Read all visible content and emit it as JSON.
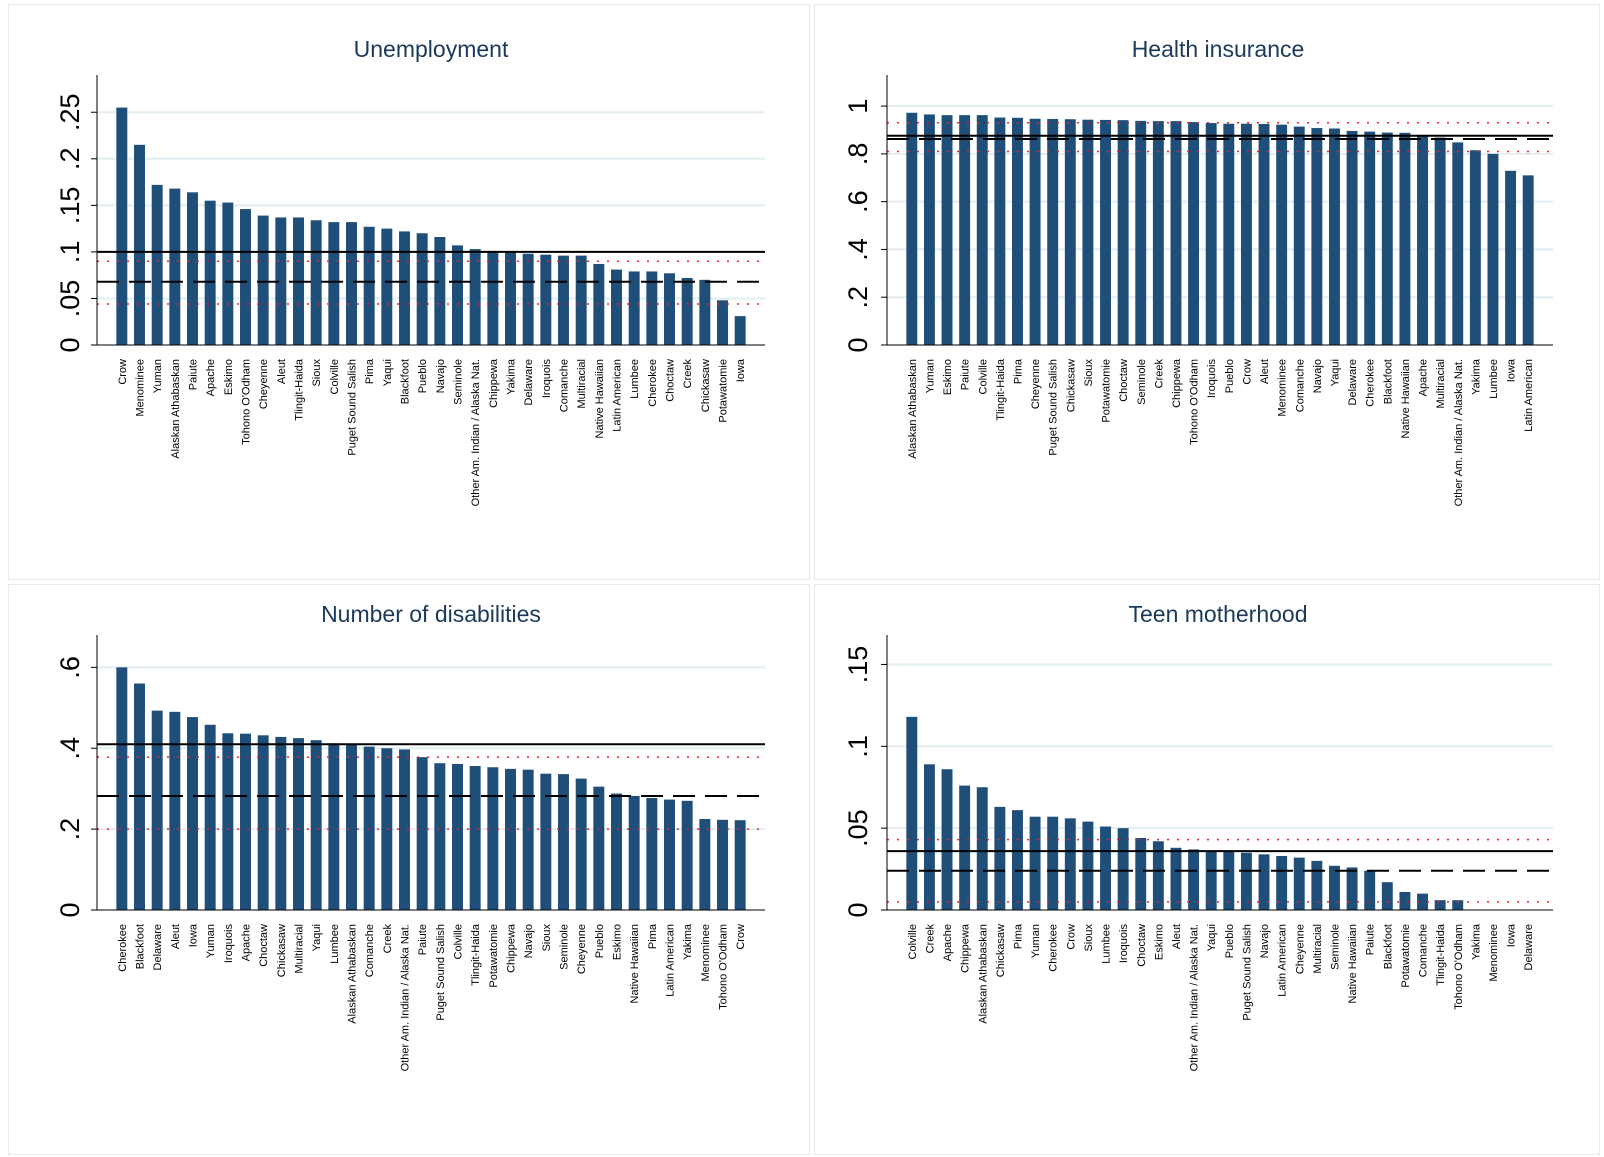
{
  "colors": {
    "bar": "#1f4e79",
    "grid": "#e2eef2",
    "reference_solid": "#000000",
    "reference_dashed": "#000000",
    "ci_dotted": "#e8262a",
    "title": "#1b3a5b"
  },
  "chart_data": [
    {
      "type": "bar",
      "title": "Unemployment",
      "xlabel": "",
      "ylabel": "",
      "ylim": [
        0,
        0.29
      ],
      "yticks": [
        0,
        0.05,
        0.1,
        0.15,
        0.2,
        0.25
      ],
      "ytick_labels": [
        "0",
        ".05",
        ".1",
        ".15",
        ".2",
        ".25"
      ],
      "grid": true,
      "categories": [
        "Crow",
        "Menominee",
        "Yuman",
        "Alaskan Athabaskan",
        "Paiute",
        "Apache",
        "Eskimo",
        "Tohono O'Odham",
        "Cheyenne",
        "Aleut",
        "Tlingit-Haida",
        "Sioux",
        "Colville",
        "Puget Sound Salish",
        "Pima",
        "Yaqui",
        "Blackfoot",
        "Pueblo",
        "Navajo",
        "Seminole",
        "Other Am. Indian / Alaska Nat.",
        "Chippewa",
        "Yakima",
        "Delaware",
        "Iroquois",
        "Comanche",
        "Multiracial",
        "Native Hawaiian",
        "Latin American",
        "Lumbee",
        "Cherokee",
        "Choctaw",
        "Creek",
        "Chickasaw",
        "Potawatomie",
        "Iowa"
      ],
      "values": [
        0.255,
        0.215,
        0.172,
        0.168,
        0.164,
        0.155,
        0.153,
        0.146,
        0.139,
        0.137,
        0.137,
        0.134,
        0.132,
        0.132,
        0.127,
        0.125,
        0.122,
        0.12,
        0.116,
        0.107,
        0.103,
        0.101,
        0.1,
        0.098,
        0.097,
        0.096,
        0.096,
        0.087,
        0.081,
        0.079,
        0.079,
        0.077,
        0.072,
        0.07,
        0.048,
        0.031
      ],
      "ref_solid": 0.1,
      "ref_dashed": 0.068,
      "ci_dotted": [
        0.044,
        0.09
      ]
    },
    {
      "type": "bar",
      "title": "Health insurance",
      "xlabel": "",
      "ylabel": "",
      "ylim": [
        0,
        1.13
      ],
      "yticks": [
        0,
        0.2,
        0.4,
        0.6,
        0.8,
        1
      ],
      "ytick_labels": [
        "0",
        ".2",
        ".4",
        ".6",
        ".8",
        "1"
      ],
      "grid": true,
      "categories": [
        "Alaskan Athabaskan",
        "Yuman",
        "Eskimo",
        "Paiute",
        "Colville",
        "Tlingit-Haida",
        "Pima",
        "Cheyenne",
        "Puget Sound Salish",
        "Chickasaw",
        "Sioux",
        "Potawatomie",
        "Choctaw",
        "Seminole",
        "Creek",
        "Chippewa",
        "Tohono O'Odham",
        "Iroquois",
        "Pueblo",
        "Crow",
        "Aleut",
        "Menominee",
        "Comanche",
        "Navajo",
        "Yaqui",
        "Delaware",
        "Cherokee",
        "Blackfoot",
        "Native Hawaiian",
        "Apache",
        "Multiracial",
        "Other Am. Indian / Alaska Nat.",
        "Yakima",
        "Lumbee",
        "Iowa",
        "Latin American"
      ],
      "values": [
        0.972,
        0.965,
        0.962,
        0.962,
        0.962,
        0.952,
        0.951,
        0.947,
        0.946,
        0.945,
        0.943,
        0.942,
        0.941,
        0.938,
        0.937,
        0.937,
        0.933,
        0.929,
        0.926,
        0.926,
        0.925,
        0.922,
        0.914,
        0.908,
        0.906,
        0.896,
        0.893,
        0.889,
        0.888,
        0.874,
        0.868,
        0.848,
        0.815,
        0.8,
        0.729,
        0.71
      ],
      "ref_solid": 0.876,
      "ref_dashed": 0.862,
      "ci_dotted": [
        0.81,
        0.93
      ]
    },
    {
      "type": "bar",
      "title": "Number of disabilities",
      "xlabel": "",
      "ylabel": "",
      "ylim": [
        0,
        0.68
      ],
      "yticks": [
        0,
        0.2,
        0.4,
        0.6
      ],
      "ytick_labels": [
        "0",
        ".2",
        ".4",
        ".6"
      ],
      "grid": true,
      "categories": [
        "Cherokee",
        "Blackfoot",
        "Delaware",
        "Aleut",
        "Iowa",
        "Yuman",
        "Iroquois",
        "Apache",
        "Choctaw",
        "Chickasaw",
        "Multiracial",
        "Yaqui",
        "Lumbee",
        "Alaskan Athabaskan",
        "Comanche",
        "Creek",
        "Other Am. Indian / Alaska Nat.",
        "Paiute",
        "Puget Sound Salish",
        "Colville",
        "Tlingit-Haida",
        "Potawatomie",
        "Chippewa",
        "Navajo",
        "Sioux",
        "Seminole",
        "Cheyenne",
        "Pueblo",
        "Eskimo",
        "Native Hawaiian",
        "Pima",
        "Latin American",
        "Yakima",
        "Menominee",
        "Tohono O'Odham",
        "Crow"
      ],
      "values": [
        0.6,
        0.56,
        0.493,
        0.49,
        0.477,
        0.458,
        0.437,
        0.436,
        0.432,
        0.428,
        0.425,
        0.42,
        0.412,
        0.408,
        0.404,
        0.4,
        0.397,
        0.378,
        0.363,
        0.361,
        0.356,
        0.353,
        0.349,
        0.347,
        0.337,
        0.336,
        0.325,
        0.305,
        0.288,
        0.282,
        0.277,
        0.273,
        0.27,
        0.225,
        0.223,
        0.222
      ],
      "ref_solid": 0.41,
      "ref_dashed": 0.282,
      "ci_dotted": [
        0.2,
        0.378
      ]
    },
    {
      "type": "bar",
      "title": "Teen motherhood",
      "xlabel": "",
      "ylabel": "",
      "ylim": [
        0,
        0.168
      ],
      "yticks": [
        0,
        0.05,
        0.1,
        0.15
      ],
      "ytick_labels": [
        "0",
        ".05",
        ".1",
        ".15"
      ],
      "grid": true,
      "categories": [
        "Colville",
        "Creek",
        "Apache",
        "Chippewa",
        "Alaskan Athabaskan",
        "Chickasaw",
        "Pima",
        "Yuman",
        "Cherokee",
        "Crow",
        "Sioux",
        "Lumbee",
        "Iroquois",
        "Choctaw",
        "Eskimo",
        "Aleut",
        "Other Am. Indian / Alaska Nat.",
        "Yaqui",
        "Pueblo",
        "Puget Sound Salish",
        "Navajo",
        "Latin American",
        "Cheyenne",
        "Multiracial",
        "Seminole",
        "Native Hawaiian",
        "Paiute",
        "Blackfoot",
        "Potawatomie",
        "Comanche",
        "Tlingit-Haida",
        "Tohono O'Odham",
        "Yakima",
        "Menominee",
        "Iowa",
        "Delaware"
      ],
      "values": [
        0.118,
        0.089,
        0.086,
        0.076,
        0.075,
        0.063,
        0.061,
        0.057,
        0.057,
        0.056,
        0.054,
        0.051,
        0.05,
        0.044,
        0.042,
        0.038,
        0.037,
        0.036,
        0.036,
        0.035,
        0.034,
        0.033,
        0.032,
        0.03,
        0.027,
        0.026,
        0.024,
        0.017,
        0.011,
        0.01,
        0.006,
        0.006,
        0,
        0,
        0,
        0
      ],
      "ref_solid": 0.036,
      "ref_dashed": 0.024,
      "ci_dotted": [
        0.005,
        0.043
      ]
    }
  ]
}
